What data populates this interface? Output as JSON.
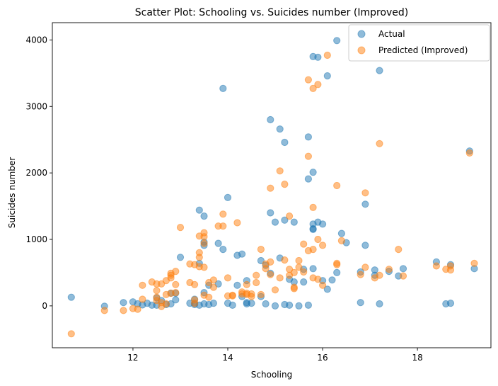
{
  "chart_data": {
    "type": "scatter",
    "title": "Scatter Plot: Schooling vs. Suicides number (Improved)",
    "xlabel": "Schooling",
    "ylabel": "Suicides number",
    "xlim": [
      10.3,
      19.55
    ],
    "ylim": [
      -630,
      4260
    ],
    "xticks": [
      12,
      14,
      16,
      18
    ],
    "yticks": [
      0,
      1000,
      2000,
      3000,
      4000
    ],
    "grid": false,
    "legend_position": "top-right",
    "colors": {
      "actual": "#1f77b4",
      "predicted": "#ff7f0e"
    },
    "series": [
      {
        "name": "Actual",
        "color": "#1f77b4",
        "points": [
          [
            10.7,
            130
          ],
          [
            11.4,
            -5
          ],
          [
            11.8,
            50
          ],
          [
            12.0,
            60
          ],
          [
            12.1,
            30
          ],
          [
            12.2,
            15
          ],
          [
            12.3,
            40
          ],
          [
            12.4,
            10
          ],
          [
            12.5,
            10
          ],
          [
            12.5,
            120
          ],
          [
            12.6,
            80
          ],
          [
            12.7,
            20
          ],
          [
            12.8,
            30
          ],
          [
            12.8,
            190
          ],
          [
            12.9,
            190
          ],
          [
            12.9,
            90
          ],
          [
            13.0,
            730
          ],
          [
            13.2,
            40
          ],
          [
            13.3,
            40
          ],
          [
            13.3,
            20
          ],
          [
            13.3,
            100
          ],
          [
            13.4,
            10
          ],
          [
            13.4,
            640
          ],
          [
            13.4,
            1440
          ],
          [
            13.5,
            1350
          ],
          [
            13.5,
            960
          ],
          [
            13.5,
            910
          ],
          [
            13.5,
            200
          ],
          [
            13.5,
            30
          ],
          [
            13.6,
            20
          ],
          [
            13.6,
            310
          ],
          [
            13.7,
            40
          ],
          [
            13.8,
            940
          ],
          [
            13.8,
            330
          ],
          [
            13.9,
            3270
          ],
          [
            13.9,
            850
          ],
          [
            14.0,
            1630
          ],
          [
            14.0,
            40
          ],
          [
            14.1,
            10
          ],
          [
            14.2,
            310
          ],
          [
            14.2,
            760
          ],
          [
            14.3,
            780
          ],
          [
            14.3,
            140
          ],
          [
            14.4,
            380
          ],
          [
            14.4,
            50
          ],
          [
            14.4,
            30
          ],
          [
            14.5,
            40
          ],
          [
            14.7,
            680
          ],
          [
            14.7,
            140
          ],
          [
            14.8,
            30
          ],
          [
            14.8,
            610
          ],
          [
            14.9,
            1400
          ],
          [
            14.9,
            2800
          ],
          [
            14.9,
            490
          ],
          [
            15.0,
            0
          ],
          [
            15.0,
            1260
          ],
          [
            15.1,
            2660
          ],
          [
            15.1,
            720
          ],
          [
            15.2,
            2460
          ],
          [
            15.2,
            1290
          ],
          [
            15.2,
            20
          ],
          [
            15.3,
            10
          ],
          [
            15.3,
            400
          ],
          [
            15.4,
            1260
          ],
          [
            15.4,
            360
          ],
          [
            15.5,
            0
          ],
          [
            15.6,
            360
          ],
          [
            15.6,
            550
          ],
          [
            15.7,
            2540
          ],
          [
            15.7,
            1910
          ],
          [
            15.7,
            10
          ],
          [
            15.8,
            3750
          ],
          [
            15.8,
            2010
          ],
          [
            15.8,
            1230
          ],
          [
            15.8,
            1150
          ],
          [
            15.8,
            1160
          ],
          [
            15.8,
            560
          ],
          [
            15.9,
            3740
          ],
          [
            15.9,
            1260
          ],
          [
            16.0,
            1230
          ],
          [
            16.0,
            380
          ],
          [
            16.1,
            3460
          ],
          [
            16.1,
            250
          ],
          [
            16.2,
            390
          ],
          [
            16.3,
            3990
          ],
          [
            16.3,
            500
          ],
          [
            16.4,
            1090
          ],
          [
            16.5,
            950
          ],
          [
            16.8,
            50
          ],
          [
            16.8,
            510
          ],
          [
            16.9,
            1530
          ],
          [
            16.9,
            910
          ],
          [
            17.1,
            540
          ],
          [
            17.1,
            460
          ],
          [
            17.2,
            3540
          ],
          [
            17.2,
            30
          ],
          [
            17.4,
            520
          ],
          [
            17.6,
            450
          ],
          [
            17.7,
            560
          ],
          [
            18.4,
            660
          ],
          [
            18.6,
            30
          ],
          [
            18.7,
            40
          ],
          [
            18.7,
            620
          ],
          [
            19.1,
            2330
          ],
          [
            19.2,
            560
          ]
        ]
      },
      {
        "name": "Predicted (Improved)",
        "color": "#ff7f0e",
        "points": [
          [
            10.7,
            -420
          ],
          [
            11.4,
            -70
          ],
          [
            11.8,
            -70
          ],
          [
            12.0,
            -40
          ],
          [
            12.1,
            -50
          ],
          [
            12.2,
            310
          ],
          [
            12.2,
            100
          ],
          [
            12.4,
            360
          ],
          [
            12.5,
            330
          ],
          [
            12.5,
            230
          ],
          [
            12.5,
            130
          ],
          [
            12.5,
            80
          ],
          [
            12.6,
            330
          ],
          [
            12.6,
            50
          ],
          [
            12.6,
            -10
          ],
          [
            12.7,
            380
          ],
          [
            12.7,
            170
          ],
          [
            12.7,
            30
          ],
          [
            12.8,
            490
          ],
          [
            12.8,
            460
          ],
          [
            12.8,
            420
          ],
          [
            12.8,
            190
          ],
          [
            12.9,
            520
          ],
          [
            12.9,
            320
          ],
          [
            12.9,
            200
          ],
          [
            13.0,
            1180
          ],
          [
            13.2,
            630
          ],
          [
            13.2,
            350
          ],
          [
            13.3,
            620
          ],
          [
            13.3,
            320
          ],
          [
            13.3,
            90
          ],
          [
            13.3,
            40
          ],
          [
            13.4,
            800
          ],
          [
            13.4,
            730
          ],
          [
            13.4,
            1050
          ],
          [
            13.4,
            590
          ],
          [
            13.5,
            1100
          ],
          [
            13.5,
            1040
          ],
          [
            13.5,
            940
          ],
          [
            13.5,
            580
          ],
          [
            13.5,
            160
          ],
          [
            13.6,
            350
          ],
          [
            13.6,
            130
          ],
          [
            13.7,
            390
          ],
          [
            13.7,
            280
          ],
          [
            13.8,
            1200
          ],
          [
            13.9,
            1380
          ],
          [
            13.9,
            1200
          ],
          [
            14.0,
            420
          ],
          [
            14.0,
            150
          ],
          [
            14.1,
            160
          ],
          [
            14.1,
            150
          ],
          [
            14.2,
            1250
          ],
          [
            14.3,
            210
          ],
          [
            14.3,
            180
          ],
          [
            14.4,
            320
          ],
          [
            14.4,
            190
          ],
          [
            14.4,
            170
          ],
          [
            14.5,
            180
          ],
          [
            14.5,
            140
          ],
          [
            14.6,
            460
          ],
          [
            14.6,
            350
          ],
          [
            14.7,
            850
          ],
          [
            14.7,
            170
          ],
          [
            14.8,
            630
          ],
          [
            14.8,
            560
          ],
          [
            14.9,
            1770
          ],
          [
            14.9,
            660
          ],
          [
            14.9,
            470
          ],
          [
            15.0,
            240
          ],
          [
            15.1,
            2030
          ],
          [
            15.1,
            420
          ],
          [
            15.2,
            1830
          ],
          [
            15.2,
            690
          ],
          [
            15.3,
            1350
          ],
          [
            15.3,
            550
          ],
          [
            15.3,
            460
          ],
          [
            15.4,
            500
          ],
          [
            15.4,
            280
          ],
          [
            15.4,
            260
          ],
          [
            15.5,
            680
          ],
          [
            15.5,
            580
          ],
          [
            15.6,
            930
          ],
          [
            15.6,
            510
          ],
          [
            15.7,
            3400
          ],
          [
            15.7,
            2250
          ],
          [
            15.7,
            830
          ],
          [
            15.8,
            3270
          ],
          [
            15.8,
            1480
          ],
          [
            15.8,
            850
          ],
          [
            15.8,
            420
          ],
          [
            15.9,
            3330
          ],
          [
            15.9,
            1000
          ],
          [
            15.9,
            400
          ],
          [
            16.0,
            910
          ],
          [
            16.0,
            310
          ],
          [
            16.1,
            3770
          ],
          [
            16.3,
            1810
          ],
          [
            16.3,
            640
          ],
          [
            16.3,
            620
          ],
          [
            16.4,
            980
          ],
          [
            16.8,
            470
          ],
          [
            16.9,
            1700
          ],
          [
            16.9,
            580
          ],
          [
            17.1,
            420
          ],
          [
            17.2,
            2440
          ],
          [
            17.2,
            460
          ],
          [
            17.4,
            550
          ],
          [
            17.6,
            850
          ],
          [
            17.7,
            450
          ],
          [
            18.4,
            600
          ],
          [
            18.6,
            550
          ],
          [
            18.7,
            600
          ],
          [
            18.7,
            540
          ],
          [
            19.1,
            2300
          ],
          [
            19.2,
            640
          ]
        ]
      }
    ]
  }
}
